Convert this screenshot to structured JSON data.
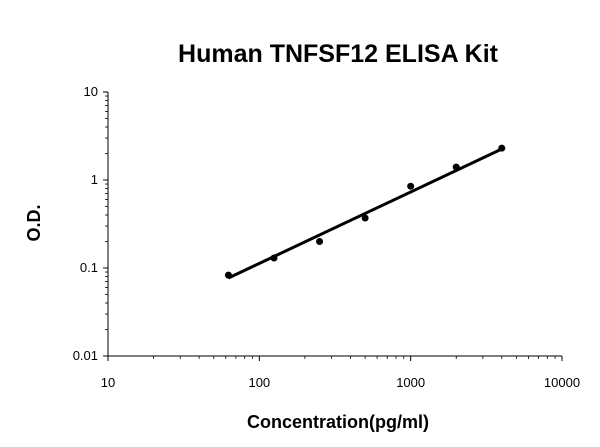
{
  "chart_data": {
    "type": "scatter",
    "title": "Human TNFSF12 ELISA Kit",
    "xlabel": "Concentration(pg/ml)",
    "ylabel": "O.D.",
    "x_scale": "log",
    "y_scale": "log",
    "xlim": [
      10,
      10000
    ],
    "ylim": [
      0.01,
      10
    ],
    "x_ticks": [
      "10",
      "100",
      "1000",
      "10000"
    ],
    "y_ticks": [
      "0.01",
      "0.1",
      "1",
      "10"
    ],
    "grid": false,
    "legend": "none",
    "series": [
      {
        "points": [
          {
            "x": 62.5,
            "y": 0.083
          },
          {
            "x": 125,
            "y": 0.13
          },
          {
            "x": 250,
            "y": 0.2
          },
          {
            "x": 500,
            "y": 0.37
          },
          {
            "x": 1000,
            "y": 0.85
          },
          {
            "x": 2000,
            "y": 1.4
          },
          {
            "x": 4000,
            "y": 2.3
          }
        ],
        "trendline": {
          "type": "power",
          "from": {
            "x": 62.5,
            "y": 0.077
          },
          "to": {
            "x": 4000,
            "y": 2.25
          }
        }
      }
    ],
    "colors": {
      "marker": "#000000",
      "line": "#000000",
      "axis": "#000000"
    }
  }
}
